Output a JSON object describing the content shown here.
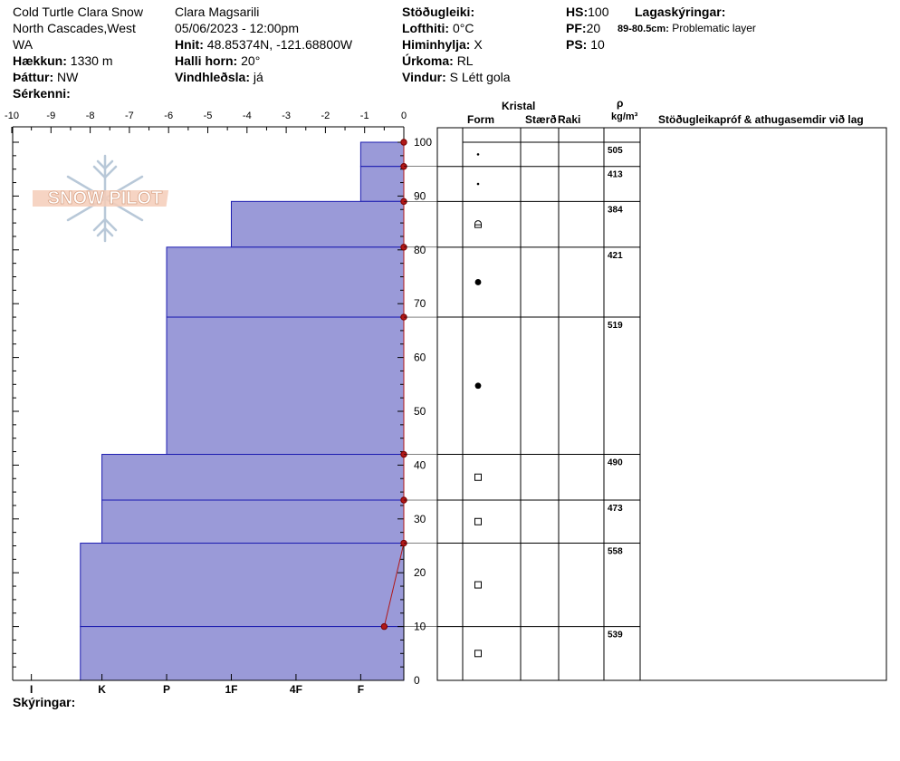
{
  "header": {
    "location_line1": "Cold Turtle Clara Snow",
    "location_line2": "North Cascades,West",
    "location_line3": "WA",
    "elevation_label": "Hækkun:",
    "elevation_value": "1330 m",
    "aspect_label": "Þáttur:",
    "aspect_value": "NW",
    "features_label": "Sérkenni:",
    "observer": "Clara Magsarili",
    "datetime": "05/06/2023 - 12:00pm",
    "coords_label": "Hnit:",
    "coords_value": "48.85374N, -121.68800W",
    "slope_label": "Halli horn:",
    "slope_value": "20°",
    "wind_loading_label": "Vindhleðsla:",
    "wind_loading_value": "já",
    "stability_label": "Stöðugleiki:",
    "air_temp_label": "Lofthiti:",
    "air_temp_value": "0°C",
    "sky_label": "Himinhylja:",
    "sky_value": "X",
    "precip_label": "Úrkoma:",
    "precip_value": "RL",
    "wind_label": "Vindur:",
    "wind_value": "S Létt gola",
    "hs_label": "HS:",
    "hs_value": "100",
    "pf_label": "PF:",
    "pf_value": "20",
    "ps_label": "PS:",
    "ps_value": "10",
    "legend_label": "Lagaskýringar:",
    "legend_range": "89-80.5cm:",
    "legend_text": "Problematic layer"
  },
  "table_headers": {
    "crystal": "Kristal",
    "form": "Form",
    "size": "Stærð",
    "moisture": "Raki",
    "rho": "ρ",
    "density_unit": "kg/m³",
    "comments": "Stöðugleikapróf & athugasemdir við lag"
  },
  "footer": {
    "legend_label": "Skýringar:"
  },
  "logo_text": "SNOW PILOT",
  "colors": {
    "layer_fill": "#9a9ad8",
    "layer_line": "#1c1cb0",
    "temp": "#b01818",
    "axis": "#000000"
  },
  "chart_data": {
    "type": "snow-profile",
    "temp_axis": {
      "ticks": [
        -10,
        -9,
        -8,
        -7,
        -6,
        -5,
        -4,
        -3,
        -2,
        -1,
        0
      ],
      "tick_labels": [
        "-10",
        "-9",
        "-8",
        "-7",
        "-6",
        "-5",
        "-4",
        "-3",
        "-2",
        "-1",
        "0"
      ]
    },
    "depth_axis": {
      "range": [
        0,
        100
      ],
      "ticks": [
        0,
        10,
        20,
        30,
        40,
        50,
        60,
        70,
        80,
        90,
        100
      ],
      "tick_labels": [
        "0",
        "10",
        "20",
        "30",
        "40",
        "50",
        "60",
        "70",
        "80",
        "90",
        "100"
      ]
    },
    "hardness_scale": [
      "I",
      "K",
      "P",
      "1F",
      "4F",
      "F"
    ],
    "layers": [
      {
        "top": 100,
        "bottom": 95.5,
        "hardness_index": 1.1,
        "form": "small-dot",
        "density": "505"
      },
      {
        "top": 95.5,
        "bottom": 89,
        "hardness_index": 1.1,
        "form": "small-dot",
        "density": "413"
      },
      {
        "top": 89,
        "bottom": 80.5,
        "hardness_index": 4.4,
        "form": "rounded-facet",
        "density": "384"
      },
      {
        "top": 80.5,
        "bottom": 67.5,
        "hardness_index": 6.05,
        "form": "dot",
        "density": "421"
      },
      {
        "top": 67.5,
        "bottom": 42,
        "hardness_index": 6.05,
        "form": "dot",
        "density": "519"
      },
      {
        "top": 42,
        "bottom": 33.5,
        "hardness_index": 7.7,
        "form": "square",
        "density": "490"
      },
      {
        "top": 33.5,
        "bottom": 25.5,
        "hardness_index": 7.7,
        "form": "square",
        "density": "473"
      },
      {
        "top": 25.5,
        "bottom": 10,
        "hardness_index": 8.25,
        "form": "square",
        "density": "558"
      },
      {
        "top": 10,
        "bottom": 0,
        "hardness_index": 8.25,
        "form": "square",
        "density": "539"
      }
    ],
    "temperature_profile": [
      {
        "depth": 100,
        "temp": 0
      },
      {
        "depth": 95.5,
        "temp": 0
      },
      {
        "depth": 89,
        "temp": 0
      },
      {
        "depth": 80.5,
        "temp": 0
      },
      {
        "depth": 67.5,
        "temp": 0
      },
      {
        "depth": 42,
        "temp": 0
      },
      {
        "depth": 33.5,
        "temp": 0
      },
      {
        "depth": 25.5,
        "temp": 0
      },
      {
        "depth": 10,
        "temp": -0.5
      }
    ]
  }
}
